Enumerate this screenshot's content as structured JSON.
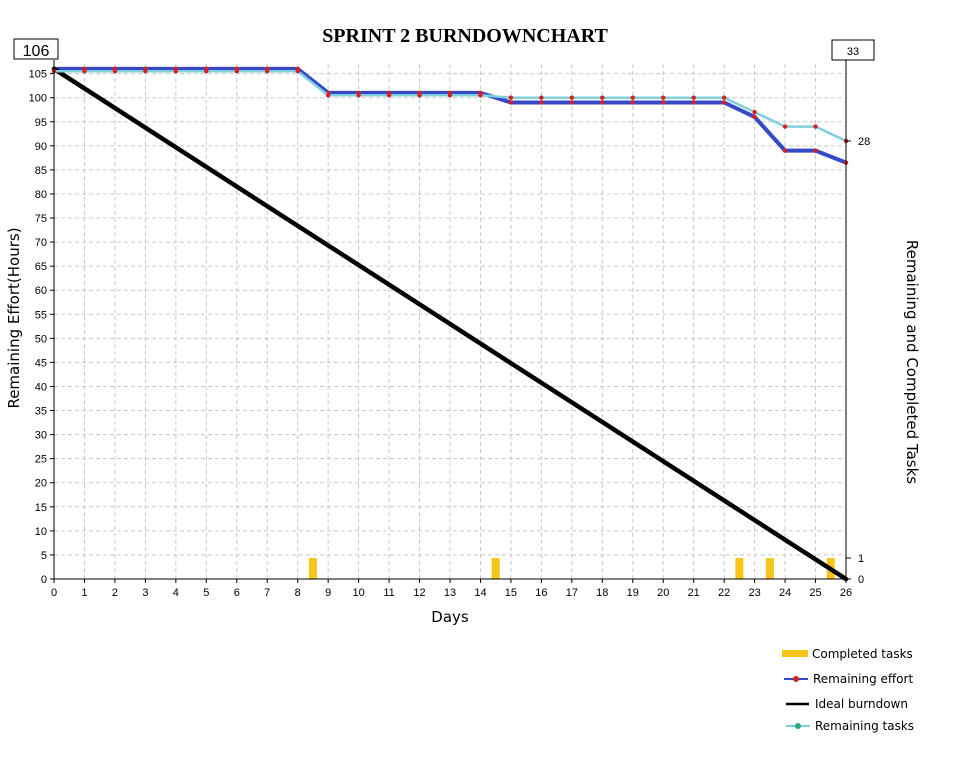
{
  "chart_data": {
    "type": "line",
    "title": "SPRINT 2 BURNDOWNCHART",
    "xlabel": "Days",
    "ylabel": "Remaining Effort(Hours)",
    "y2label": "Remaining and Completed Tasks",
    "xlim": [
      0,
      26
    ],
    "ylim": [
      0,
      107
    ],
    "y2lim": [
      0,
      33
    ],
    "grid": true,
    "legend_position": "bottom-right",
    "x_ticks": [
      "0",
      "1",
      "2",
      "3",
      "4",
      "5",
      "6",
      "7",
      "8",
      "9",
      "10",
      "11",
      "12",
      "13",
      "14",
      "15",
      "16",
      "17",
      "18",
      "19",
      "20",
      "21",
      "22",
      "23",
      "24",
      "25",
      "26"
    ],
    "y_ticks": [
      "0",
      "5",
      "10",
      "15",
      "20",
      "25",
      "30",
      "35",
      "40",
      "45",
      "50",
      "55",
      "60",
      "65",
      "70",
      "75",
      "80",
      "85",
      "90",
      "95",
      "100",
      "105"
    ],
    "y2_ticks": [
      "0",
      "1",
      "28"
    ],
    "start_value_label": "106",
    "tasks_total_label": "33",
    "series": [
      {
        "name": "Completed tasks",
        "kind": "bar",
        "axis": "right",
        "color": "#f5c518",
        "x": [
          8.5,
          14.5,
          22.5,
          23.5,
          25.5
        ],
        "values": [
          1,
          1,
          1,
          1,
          1
        ]
      },
      {
        "name": "Remaining effort",
        "kind": "line",
        "axis": "left",
        "color": "#3548c8",
        "marker_color": "#d62020",
        "x": [
          0,
          1,
          2,
          3,
          4,
          5,
          6,
          7,
          8,
          9,
          10,
          11,
          12,
          13,
          14,
          15,
          16,
          17,
          18,
          19,
          20,
          21,
          22,
          23,
          24,
          25,
          26
        ],
        "values": [
          106,
          106,
          106,
          106,
          106,
          106,
          106,
          106,
          106,
          101,
          101,
          101,
          101,
          101,
          101,
          99,
          99,
          99,
          99,
          99,
          99,
          99,
          99,
          96,
          89,
          89,
          86.5
        ]
      },
      {
        "name": "Ideal burndown",
        "kind": "line",
        "axis": "left",
        "color": "#000000",
        "x": [
          0,
          26
        ],
        "values": [
          106,
          0
        ]
      },
      {
        "name": "Remaining tasks",
        "kind": "line",
        "axis": "left",
        "color": "#7fcfe0",
        "marker_color": "#d62020",
        "legend_marker_color": "#2aa87a",
        "x": [
          0,
          1,
          2,
          3,
          4,
          5,
          6,
          7,
          8,
          9,
          10,
          11,
          12,
          13,
          14,
          15,
          16,
          17,
          18,
          19,
          20,
          21,
          22,
          23,
          24,
          25,
          26
        ],
        "values": [
          105.5,
          105.5,
          105.5,
          105.5,
          105.5,
          105.5,
          105.5,
          105.5,
          105.5,
          100.5,
          100.5,
          100.5,
          100.5,
          100.5,
          100.5,
          100,
          100,
          100,
          100,
          100,
          100,
          100,
          100,
          97,
          94,
          94,
          91
        ]
      }
    ]
  }
}
